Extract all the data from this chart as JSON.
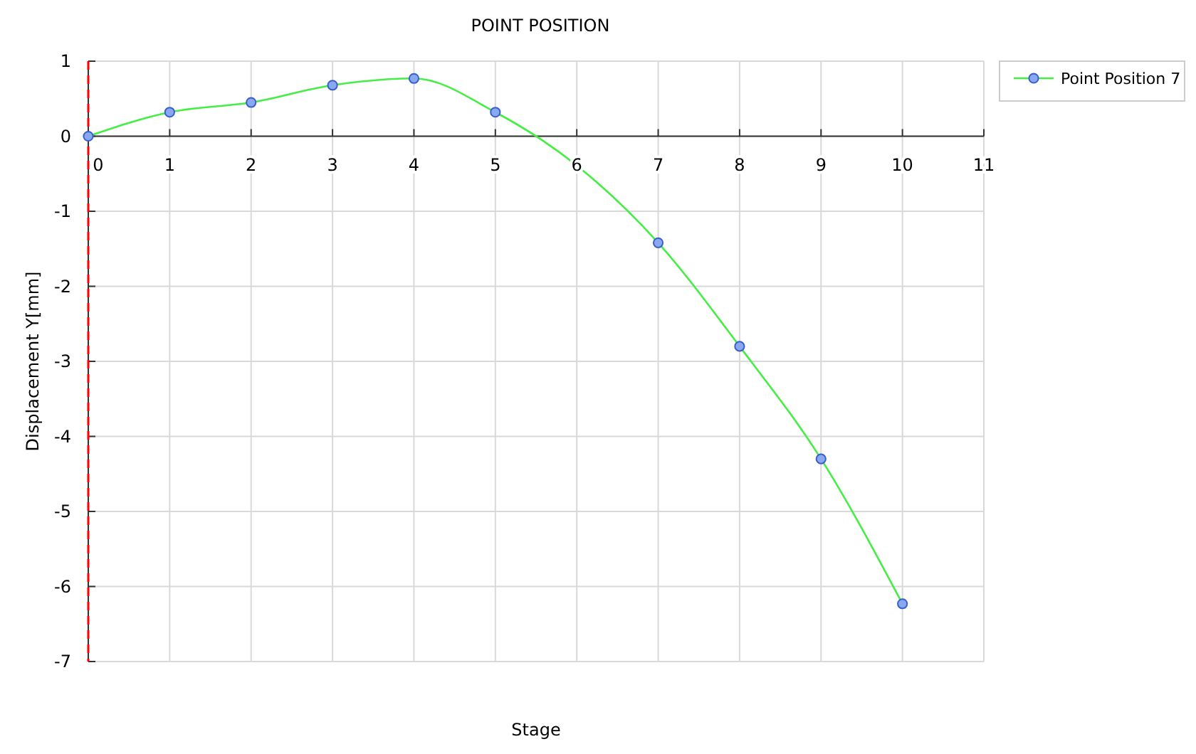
{
  "chart_data": {
    "type": "line",
    "title": "POINT POSITION",
    "xlabel": "Stage",
    "ylabel": "Displacement Y[mm]",
    "x": [
      0,
      1,
      2,
      3,
      4,
      5,
      6,
      7,
      8,
      9,
      10
    ],
    "series": [
      {
        "name": "Point Position 7",
        "color": "#44ee44",
        "values": [
          0,
          0.32,
          0.45,
          0.68,
          0.77,
          0.32,
          -0.39,
          -1.42,
          -2.8,
          -4.3,
          -6.23
        ]
      }
    ],
    "xlim": [
      0,
      11
    ],
    "xticks": [
      0,
      1,
      2,
      3,
      4,
      5,
      6,
      7,
      8,
      9,
      10,
      11
    ],
    "ylim": [
      -7,
      1
    ],
    "yticks": [
      -7,
      -6,
      -5,
      -4,
      -3,
      -2,
      -1,
      0,
      1
    ],
    "ref_lines": [
      {
        "axis": "x",
        "value": 0,
        "color": "#ff0000",
        "line_style": "dashed"
      }
    ],
    "grid": true,
    "legend": "top right",
    "marker": "circle",
    "line_style": "solid"
  }
}
